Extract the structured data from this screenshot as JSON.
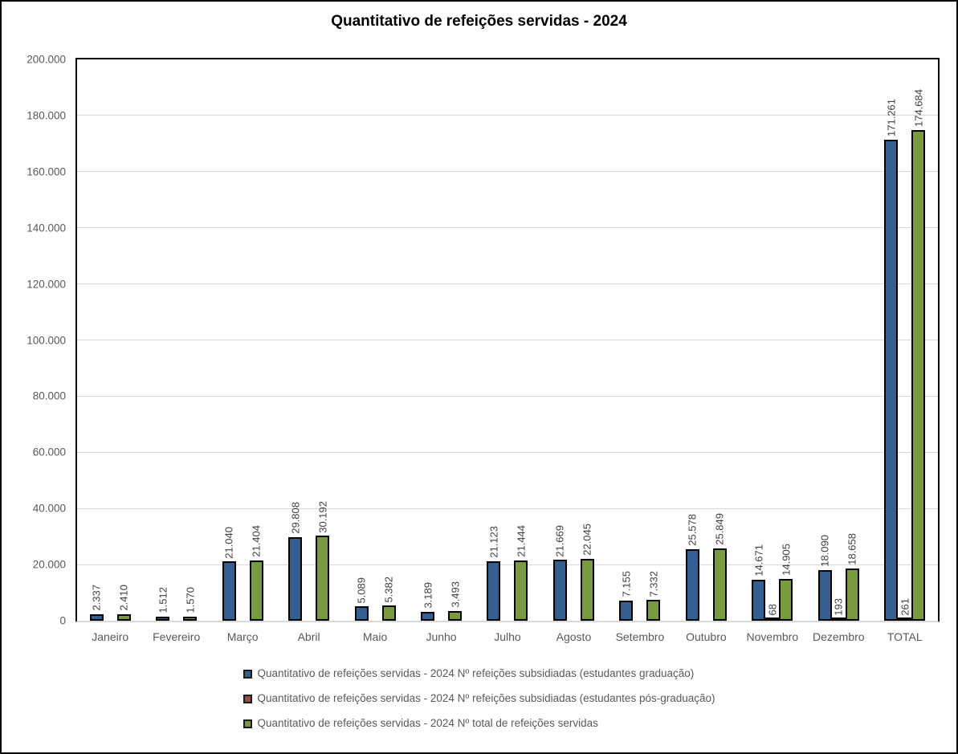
{
  "chart_data": {
    "type": "bar",
    "title": "Quantitativo de refeições servidas - 2024",
    "categories": [
      "Janeiro",
      "Fevereiro",
      "Março",
      "Abril",
      "Maio",
      "Junho",
      "Julho",
      "Agosto",
      "Setembro",
      "Outubro",
      "Novembro",
      "Dezembro",
      "TOTAL"
    ],
    "series": [
      {
        "name": "Quantitativo de refeições servidas - 2024 Nº refeições subsidiadas (estudantes graduação)",
        "color": "#365F91",
        "border_color": "#000000",
        "values": [
          2337,
          1512,
          21040,
          29808,
          5089,
          3189,
          21123,
          21669,
          7155,
          25578,
          14671,
          18090,
          171261
        ],
        "labels": [
          "2.337",
          "1.512",
          "21.040",
          "29.808",
          "5.089",
          "3.189",
          "21.123",
          "21.669",
          "7.155",
          "25.578",
          "14.671",
          "18.090",
          "171.261"
        ]
      },
      {
        "name": "Quantitativo de refeições servidas - 2024 Nº refeições subsidiadas (estudantes pós-graduação)",
        "color": "#9C4A44",
        "border_color": "#000000",
        "values": [
          null,
          null,
          null,
          null,
          null,
          null,
          null,
          null,
          null,
          null,
          68,
          193,
          261
        ],
        "labels": [
          null,
          null,
          null,
          null,
          null,
          null,
          null,
          null,
          null,
          null,
          "68",
          "193",
          "261"
        ]
      },
      {
        "name": "Quantitativo de refeições servidas - 2024 Nº total de refeições servidas",
        "color": "#7A9A3F",
        "border_color": "#000000",
        "values": [
          2410,
          1570,
          21404,
          30192,
          5382,
          3493,
          21444,
          22045,
          7332,
          25849,
          14905,
          18658,
          174684
        ],
        "labels": [
          "2.410",
          "1.570",
          "21.404",
          "30.192",
          "5.382",
          "3.493",
          "21.444",
          "22.045",
          "7.332",
          "25.849",
          "14.905",
          "18.658",
          "174.684"
        ]
      }
    ],
    "ylim": [
      0,
      200000
    ],
    "y_ticks": [
      {
        "value": 0,
        "label": "0"
      },
      {
        "value": 20000,
        "label": "20.000"
      },
      {
        "value": 40000,
        "label": "40.000"
      },
      {
        "value": 60000,
        "label": "60.000"
      },
      {
        "value": 80000,
        "label": "80.000"
      },
      {
        "value": 100000,
        "label": "100.000"
      },
      {
        "value": 120000,
        "label": "120.000"
      },
      {
        "value": 140000,
        "label": "140.000"
      },
      {
        "value": 160000,
        "label": "160.000"
      },
      {
        "value": 180000,
        "label": "180.000"
      },
      {
        "value": 200000,
        "label": "200.000"
      }
    ],
    "grid": true,
    "legend_position": "bottom",
    "data_label_rotation": 270
  },
  "appearance": {
    "gridline_color": "#d9d9d9",
    "axis_line_color": "#000000",
    "baseline_color": "#d9d9d9",
    "axis_text_color": "#595959",
    "data_label_color": "#404040",
    "frame_border_color": "#000000",
    "background_color": "#ffffff"
  }
}
